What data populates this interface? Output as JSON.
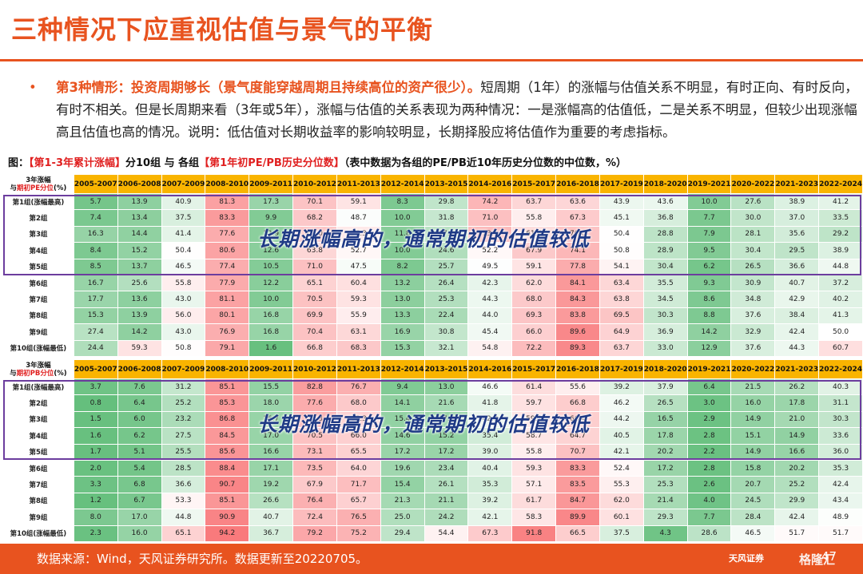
{
  "title": "三种情况下应重视估值与景气的平衡",
  "bullet": {
    "marker": "•",
    "highlight": "第3种情形：投资周期够长（景气度能穿越周期且持续高位的资产很少）。",
    "text": "短周期（1年）的涨幅与估值关系不明显，有时正向、有时反向，有时不相关。但是长周期来看（3年或5年），涨幅与估值的关系表现为两种情况：一是涨幅高的估值低，二是关系不明显，但较少出现涨幅高且估值也高的情况。说明：低估值对长期收益率的影响较明显，长期择股应将估值作为重要的考虑指标。"
  },
  "figure_caption": {
    "prefix": "图：",
    "part1": "【第1-3年累计涨幅】",
    "mid": "分10组 与 各组",
    "part2": "【第1年初PE/PB历史分位数】",
    "suffix": "（表中数据为各组的PE/PB近10年历史分位数的中位数，%）"
  },
  "periods": [
    "2005-2007",
    "2006-2008",
    "2007-2009",
    "2008-2010",
    "2009-2011",
    "2010-2012",
    "2011-2013",
    "2012-2014",
    "2013-2015",
    "2014-2016",
    "2015-2017",
    "2016-2018",
    "2017-2019",
    "2018-2020",
    "2019-2021",
    "2020-2022",
    "2021-2023",
    "2022-2024"
  ],
  "pe_table": {
    "corner_line1": "3年涨幅",
    "corner_pre": "与",
    "corner_red": "期初PE分位",
    "corner_post": "(%)",
    "rows": [
      {
        "label": "第1组(涨幅最高)",
        "values": [
          5.7,
          13.9,
          40.9,
          81.3,
          17.3,
          70.1,
          59.1,
          8.3,
          29.8,
          74.2,
          63.7,
          63.6,
          43.9,
          43.6,
          10.0,
          27.6,
          38.9,
          41.2
        ]
      },
      {
        "label": "第2组",
        "values": [
          7.4,
          13.4,
          37.5,
          83.3,
          9.9,
          68.2,
          48.7,
          10.0,
          31.8,
          71.0,
          55.8,
          67.3,
          45.1,
          36.8,
          7.7,
          30.0,
          37.0,
          33.5
        ]
      },
      {
        "label": "第3组",
        "values": [
          16.3,
          14.4,
          41.4,
          77.6,
          12.9,
          69.0,
          57.3,
          11.8,
          27.2,
          73.1,
          61.4,
          70.0,
          50.4,
          28.8,
          7.9,
          28.1,
          35.6,
          29.2
        ]
      },
      {
        "label": "第4组",
        "values": [
          8.4,
          15.2,
          50.4,
          80.6,
          12.6,
          63.8,
          52.7,
          10.0,
          24.6,
          52.2,
          67.9,
          74.1,
          50.8,
          28.9,
          9.5,
          30.4,
          29.5,
          38.9
        ]
      },
      {
        "label": "第5组",
        "values": [
          8.5,
          13.7,
          46.5,
          77.4,
          10.5,
          71.0,
          47.5,
          8.2,
          25.7,
          49.5,
          59.1,
          77.8,
          54.1,
          30.4,
          6.2,
          26.5,
          36.6,
          44.8
        ]
      },
      {
        "label": "第6组",
        "values": [
          16.7,
          25.6,
          55.8,
          77.9,
          12.2,
          65.1,
          60.4,
          13.2,
          26.4,
          42.3,
          62.0,
          84.1,
          63.4,
          35.5,
          9.3,
          30.9,
          40.7,
          37.2
        ]
      },
      {
        "label": "第7组",
        "values": [
          17.7,
          13.6,
          43.0,
          81.1,
          10.0,
          70.5,
          59.3,
          13.0,
          25.3,
          44.3,
          68.0,
          84.3,
          63.8,
          34.5,
          8.6,
          34.8,
          42.9,
          40.2
        ]
      },
      {
        "label": "第8组",
        "values": [
          15.3,
          13.9,
          56.0,
          80.1,
          16.8,
          69.9,
          55.9,
          13.3,
          22.4,
          44.0,
          69.3,
          83.8,
          69.5,
          30.3,
          8.8,
          37.6,
          38.4,
          41.3
        ]
      },
      {
        "label": "第9组",
        "values": [
          27.4,
          14.2,
          43.0,
          76.9,
          16.8,
          70.4,
          63.1,
          16.9,
          30.8,
          45.4,
          66.0,
          89.6,
          64.9,
          36.9,
          14.2,
          32.9,
          42.4,
          50.0
        ]
      },
      {
        "label": "第10组(涨幅最低)",
        "values": [
          24.4,
          59.3,
          50.8,
          79.1,
          1.6,
          66.8,
          68.3,
          15.3,
          32.1,
          54.8,
          72.2,
          89.3,
          63.7,
          33.0,
          12.9,
          37.6,
          44.3,
          60.7
        ]
      }
    ],
    "overlay": "长期涨幅高的，通常期初的估值较低"
  },
  "pb_table": {
    "corner_line1": "3年涨幅",
    "corner_pre": "与",
    "corner_red": "期初PB分位",
    "corner_post": "(%)",
    "rows": [
      {
        "label": "第1组(涨幅最高)",
        "values": [
          3.7,
          7.6,
          31.2,
          85.1,
          15.5,
          82.8,
          76.7,
          9.4,
          13.0,
          46.6,
          61.4,
          55.6,
          39.2,
          37.9,
          6.4,
          21.5,
          26.2,
          40.3
        ]
      },
      {
        "label": "第2组",
        "values": [
          0.8,
          6.4,
          25.2,
          85.3,
          18.0,
          77.6,
          68.0,
          14.1,
          21.6,
          41.8,
          59.7,
          66.8,
          46.2,
          26.5,
          3.0,
          16.0,
          17.8,
          31.1
        ]
      },
      {
        "label": "第3组",
        "values": [
          1.5,
          6.0,
          23.2,
          86.8,
          16.7,
          75.3,
          65.3,
          15.4,
          17.0,
          42.9,
          59.1,
          66.4,
          44.2,
          16.5,
          2.9,
          14.9,
          21.0,
          30.3
        ]
      },
      {
        "label": "第4组",
        "values": [
          1.6,
          6.2,
          27.5,
          84.5,
          17.0,
          70.5,
          66.0,
          14.6,
          15.2,
          35.4,
          58.7,
          64.7,
          40.5,
          17.8,
          2.8,
          15.1,
          14.9,
          33.6
        ]
      },
      {
        "label": "第5组",
        "values": [
          1.7,
          5.1,
          25.5,
          85.6,
          16.6,
          73.1,
          65.5,
          17.2,
          17.2,
          39.0,
          55.8,
          70.7,
          42.1,
          20.2,
          2.2,
          14.9,
          16.6,
          36.0
        ]
      },
      {
        "label": "第6组",
        "values": [
          2.0,
          5.4,
          28.5,
          88.4,
          17.1,
          73.5,
          64.0,
          19.6,
          23.4,
          40.4,
          59.3,
          83.3,
          52.4,
          17.2,
          2.8,
          15.8,
          20.2,
          35.3
        ]
      },
      {
        "label": "第7组",
        "values": [
          3.3,
          6.8,
          36.6,
          90.7,
          19.2,
          67.9,
          71.7,
          15.4,
          26.1,
          35.3,
          57.1,
          83.5,
          55.3,
          25.3,
          2.6,
          20.7,
          25.2,
          42.4
        ]
      },
      {
        "label": "第8组",
        "values": [
          1.2,
          6.7,
          53.3,
          85.1,
          26.6,
          76.4,
          65.7,
          21.3,
          21.1,
          39.2,
          61.7,
          84.7,
          62.0,
          21.4,
          4.0,
          24.5,
          29.9,
          43.4
        ]
      },
      {
        "label": "第9组",
        "values": [
          8.0,
          17.0,
          44.8,
          90.9,
          40.7,
          72.4,
          76.5,
          25.0,
          24.2,
          42.1,
          58.3,
          89.9,
          60.1,
          29.3,
          7.7,
          28.4,
          42.4,
          48.9
        ]
      },
      {
        "label": "第10组(涨幅最低)",
        "values": [
          2.3,
          16.0,
          65.1,
          94.2,
          36.7,
          79.2,
          75.2,
          29.4,
          54.4,
          67.3,
          91.8,
          66.5,
          37.5,
          4.3,
          28.6,
          46.5,
          51.7,
          51.7
        ]
      }
    ],
    "overlay": "长期涨幅高的，通常期初的估值较低"
  },
  "colors": {
    "accent": "#e8531f",
    "header": "#f9b400",
    "box": "#6c3d9e",
    "overlay": "#1f3a86",
    "green": "#63be7b",
    "red": "#f8696b"
  },
  "footer": {
    "source": "数据来源：Wind，天风证券研究所。数据更新至20220705。",
    "brand": "天风证券",
    "page": "47",
    "watermark": "格隆汇"
  }
}
